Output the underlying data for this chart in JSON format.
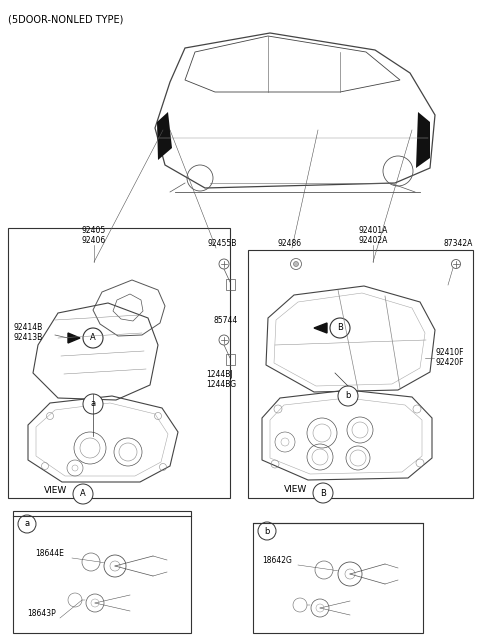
{
  "bg_color": "#ffffff",
  "text_color": "#000000",
  "title": "(5DOOR-NONLED TYPE)",
  "l_92405": "92405",
  "l_92406": "92406",
  "l_92455B": "92455B",
  "l_92486": "92486",
  "l_92401A": "92401A",
  "l_92402A": "92402A",
  "l_87342A": "87342A",
  "l_92414B": "92414B",
  "l_92413B": "92413B",
  "l_92410F": "92410F",
  "l_92420F": "92420F",
  "l_85744": "85744",
  "l_1244BJ": "1244BJ",
  "l_1244BG": "1244BG",
  "l_18644E": "18644E",
  "l_18643P": "18643P",
  "l_18642G": "18642G",
  "l_VIEW": "VIEW",
  "l_A": "A",
  "l_B": "B",
  "l_a": "a",
  "l_b": "b"
}
